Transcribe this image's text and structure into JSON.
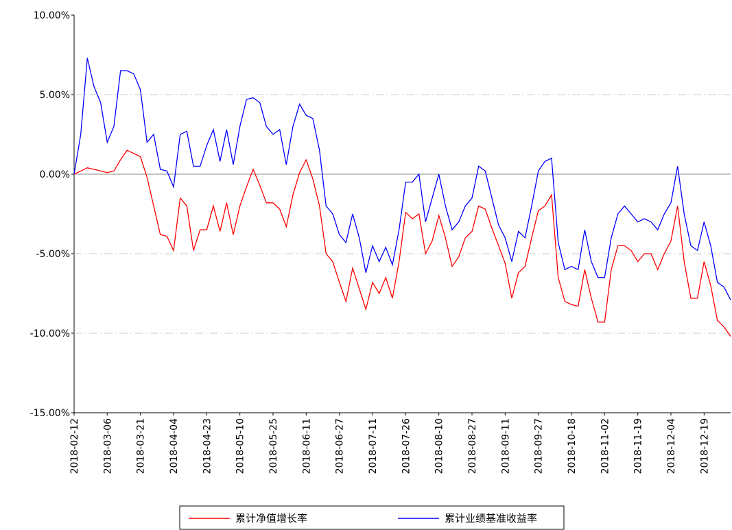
{
  "chart_data": {
    "type": "line",
    "categories": [
      "2018-02-12",
      null,
      null,
      null,
      null,
      "2018-03-06",
      null,
      null,
      null,
      null,
      "2018-03-21",
      null,
      null,
      null,
      null,
      "2018-04-04",
      null,
      null,
      null,
      null,
      "2018-04-23",
      null,
      null,
      null,
      null,
      "2018-05-10",
      null,
      null,
      null,
      null,
      "2018-05-25",
      null,
      null,
      null,
      null,
      "2018-06-11",
      null,
      null,
      null,
      null,
      "2018-06-27",
      null,
      null,
      null,
      null,
      "2018-07-11",
      null,
      null,
      null,
      null,
      "2018-07-26",
      null,
      null,
      null,
      null,
      "2018-08-10",
      null,
      null,
      null,
      null,
      "2018-08-27",
      null,
      null,
      null,
      null,
      "2018-09-11",
      null,
      null,
      null,
      null,
      "2018-09-27",
      null,
      null,
      null,
      null,
      "2018-10-18",
      null,
      null,
      null,
      null,
      "2018-11-02",
      null,
      null,
      null,
      null,
      "2018-11-19",
      null,
      null,
      null,
      null,
      "2018-12-04",
      null,
      null,
      null,
      null,
      "2018-12-19",
      null,
      null,
      null,
      null
    ],
    "series": [
      {
        "name": "累计净值增长率",
        "color": "#ff0000",
        "values": [
          0,
          0.2,
          0.4,
          0.3,
          0.2,
          0.1,
          0.2,
          0.9,
          1.5,
          1.3,
          1.1,
          -0.2,
          -2.0,
          -3.8,
          -3.9,
          -4.8,
          -1.5,
          -2.0,
          -4.8,
          -3.5,
          -3.5,
          -2.0,
          -3.6,
          -1.8,
          -3.8,
          -2.0,
          -0.8,
          0.3,
          -0.7,
          -1.8,
          -1.8,
          -2.2,
          -3.3,
          -1.3,
          0.1,
          0.9,
          -0.3,
          -2.0,
          -5.0,
          -5.5,
          -6.8,
          -8.0,
          -5.9,
          -7.2,
          -8.5,
          -6.8,
          -7.5,
          -6.5,
          -7.8,
          -5.5,
          -2.4,
          -2.8,
          -2.5,
          -5.0,
          -4.2,
          -2.6,
          -4.0,
          -5.8,
          -5.2,
          -4.0,
          -3.6,
          -2.0,
          -2.2,
          -3.4,
          -4.5,
          -5.6,
          -7.8,
          -6.2,
          -5.8,
          -4.0,
          -2.3,
          -2.0,
          -1.3,
          -6.5,
          -8.0,
          -8.2,
          -8.3,
          -6.0,
          -7.8,
          -9.3,
          -9.3,
          -6.0,
          -4.5,
          -4.5,
          -4.8,
          -5.5,
          -5.0,
          -5.0,
          -6.0,
          -5.0,
          -4.2,
          -2.0,
          -5.5,
          -7.8,
          -7.8,
          -5.5,
          -7.0,
          -9.2,
          -9.6,
          -10.2
        ]
      },
      {
        "name": "累计业绩基准收益率",
        "color": "#0000ff",
        "values": [
          0,
          2.5,
          7.3,
          5.5,
          4.5,
          2.0,
          3.0,
          6.5,
          6.5,
          6.3,
          5.3,
          2.0,
          2.5,
          0.3,
          0.2,
          -0.8,
          2.5,
          2.7,
          0.5,
          0.5,
          1.8,
          2.8,
          0.8,
          2.8,
          0.6,
          3.0,
          4.7,
          4.8,
          4.5,
          3.0,
          2.5,
          2.8,
          0.6,
          3.0,
          4.4,
          3.7,
          3.5,
          1.5,
          -2.0,
          -2.5,
          -3.8,
          -4.3,
          -2.5,
          -4.0,
          -6.2,
          -4.5,
          -5.5,
          -4.6,
          -5.7,
          -3.5,
          -0.5,
          -0.5,
          0,
          -3.0,
          -1.5,
          0,
          -2.0,
          -3.5,
          -3.0,
          -2.0,
          -1.5,
          0.5,
          0.2,
          -1.5,
          -3.2,
          -4.0,
          -5.5,
          -3.6,
          -4.0,
          -2.0,
          0.2,
          0.8,
          1.0,
          -4.3,
          -6.0,
          -5.8,
          -6.0,
          -3.5,
          -5.5,
          -6.5,
          -6.5,
          -4.0,
          -2.5,
          -2.0,
          -2.5,
          -3.0,
          -2.8,
          -3.0,
          -3.5,
          -2.5,
          -1.8,
          0.5,
          -2.5,
          -4.5,
          -4.8,
          -3.0,
          -4.5,
          -6.8,
          -7.1,
          -7.9
        ]
      }
    ],
    "ylim": [
      -15,
      10
    ],
    "yticks": [
      {
        "value": -15,
        "label": "-15.00%"
      },
      {
        "value": -10,
        "label": "-10.00%"
      },
      {
        "value": -5,
        "label": "-5.00%"
      },
      {
        "value": 0,
        "label": "0.00%"
      },
      {
        "value": 5,
        "label": "5.00%"
      },
      {
        "value": 10,
        "label": "10.00%"
      }
    ],
    "grid": true
  }
}
